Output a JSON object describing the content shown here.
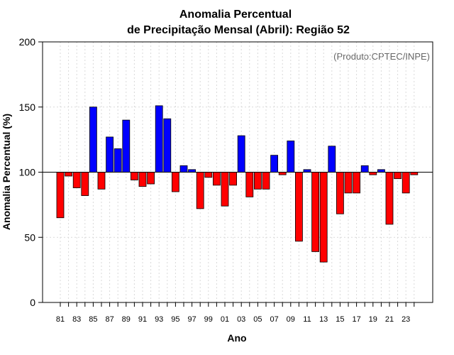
{
  "chart_data": {
    "type": "bar",
    "title_line1": "Anomalia Percentual",
    "title_line2": "de Precipitação Mensal (Abril): Região 52",
    "credit": "(Produto:CPTEC/INPE)",
    "xlabel": "Ano",
    "ylabel": "Anomalia Percentual (%)",
    "ylim": [
      0,
      200
    ],
    "yticks": [
      "0",
      "50",
      "100",
      "150",
      "200"
    ],
    "baseline": 100,
    "categories": [
      "81",
      "82",
      "83",
      "84",
      "85",
      "86",
      "87",
      "88",
      "89",
      "90",
      "91",
      "92",
      "93",
      "94",
      "95",
      "96",
      "97",
      "98",
      "99",
      "00",
      "01",
      "02",
      "03",
      "04",
      "05",
      "06",
      "07",
      "08",
      "09",
      "10",
      "11",
      "12",
      "13",
      "14",
      "15",
      "16",
      "17",
      "18",
      "19",
      "20",
      "21",
      "22",
      "23",
      "24"
    ],
    "tick_labels": [
      "81",
      "83",
      "85",
      "87",
      "89",
      "91",
      "93",
      "95",
      "97",
      "99",
      "01",
      "03",
      "05",
      "07",
      "09",
      "11",
      "13",
      "15",
      "17",
      "19",
      "21",
      "23"
    ],
    "values": [
      65,
      97,
      88,
      82,
      150,
      87,
      127,
      118,
      140,
      94,
      89,
      91,
      151,
      141,
      85,
      105,
      102,
      72,
      96,
      90,
      74,
      90,
      128,
      81,
      87,
      87,
      113,
      98,
      124,
      47,
      102,
      39,
      31,
      120,
      68,
      84,
      84,
      105,
      98,
      102,
      60,
      95,
      84,
      98
    ],
    "colors": {
      "positive": "#0000ff",
      "negative": "#ff0000",
      "outline": "#000000",
      "grid": "#d9d9d9"
    },
    "grid": true
  }
}
